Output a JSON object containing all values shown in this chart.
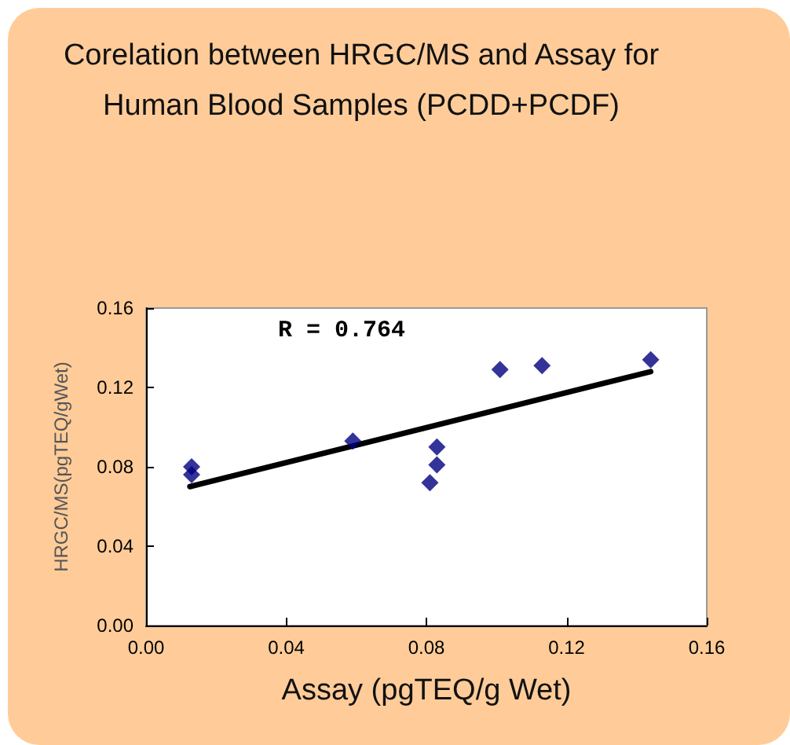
{
  "chart_data": {
    "type": "scatter",
    "title": "Corelation between HRGC/MS and Assay for Human Blood Samples (PCDD+PCDF)",
    "xlabel": "Assay (pgTEQ/g Wet)",
    "ylabel": "HRGC/MS(pgTEQ/gWet)",
    "annotations": [
      "R = 0.764"
    ],
    "series": [
      {
        "color": "#000080",
        "marker": "diamond",
        "x": [
          0.013,
          0.013,
          0.059,
          0.081,
          0.083,
          0.083,
          0.101,
          0.113,
          0.144
        ],
        "values": [
          0.08,
          0.076,
          0.093,
          0.072,
          0.09,
          0.081,
          0.129,
          0.131,
          0.134
        ]
      },
      {
        "type": "line",
        "color": "#000000",
        "marker": "none",
        "x": [
          0.0125,
          0.144
        ],
        "values": [
          0.07,
          0.128
        ]
      }
    ],
    "xlim": [
      0,
      0.16
    ],
    "ylim": [
      0,
      0.16
    ],
    "xticks": [
      {
        "value": 0,
        "label": "0.00"
      },
      {
        "value": 0.04,
        "label": "0.04"
      },
      {
        "value": 0.08,
        "label": "0.08"
      },
      {
        "value": 0.12,
        "label": "0.12"
      },
      {
        "value": 0.16,
        "label": "0.16"
      }
    ],
    "yticks": [
      {
        "value": 0,
        "label": "0.00"
      },
      {
        "value": 0.04,
        "label": "0.04"
      },
      {
        "value": 0.08,
        "label": "0.08"
      },
      {
        "value": 0.12,
        "label": "0.12"
      },
      {
        "value": 0.16,
        "label": "0.16"
      }
    ],
    "grid": false
  }
}
